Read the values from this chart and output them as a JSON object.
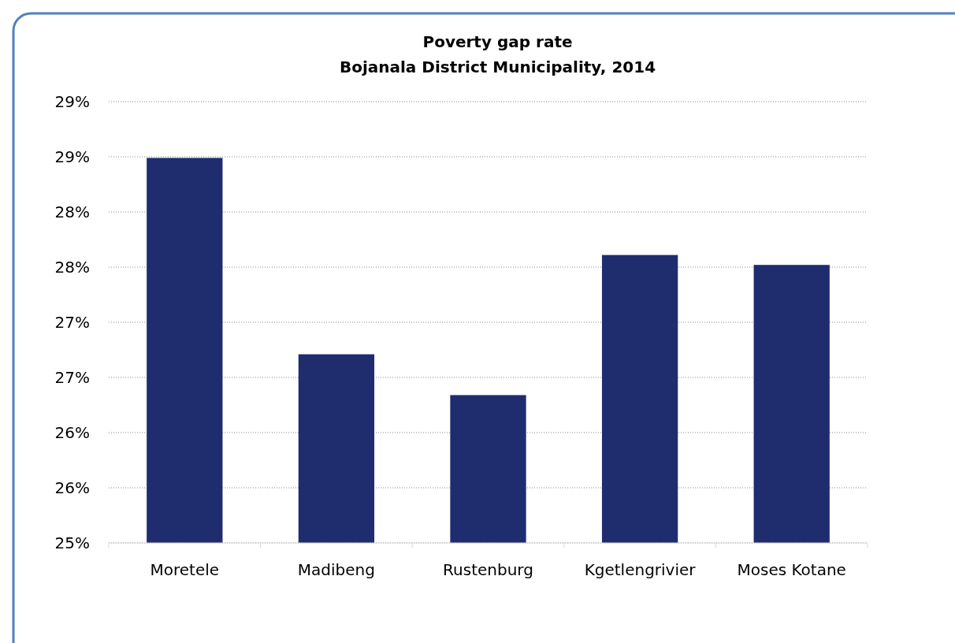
{
  "chart_data": {
    "type": "bar",
    "title": "Poverty gap rate",
    "subtitle": "Bojanala District Municipality, 2014",
    "categories": [
      "Moretele",
      "Madibeng",
      "Rustenburg",
      "Kgetlengrivier",
      "Moses Kotane"
    ],
    "values": [
      28.49,
      26.71,
      26.34,
      27.61,
      27.52
    ],
    "color": "#1f2d6e",
    "ylim": [
      25,
      29
    ],
    "yticks": [
      {
        "value": 25,
        "label": "25%"
      },
      {
        "value": 25.5,
        "label": "26%"
      },
      {
        "value": 26,
        "label": "26%"
      },
      {
        "value": 26.5,
        "label": "27%"
      },
      {
        "value": 27,
        "label": "27%"
      },
      {
        "value": 27.5,
        "label": "28%"
      },
      {
        "value": 28,
        "label": "28%"
      },
      {
        "value": 28.5,
        "label": "29%"
      },
      {
        "value": 29,
        "label": "29%"
      }
    ],
    "grid": "y"
  }
}
